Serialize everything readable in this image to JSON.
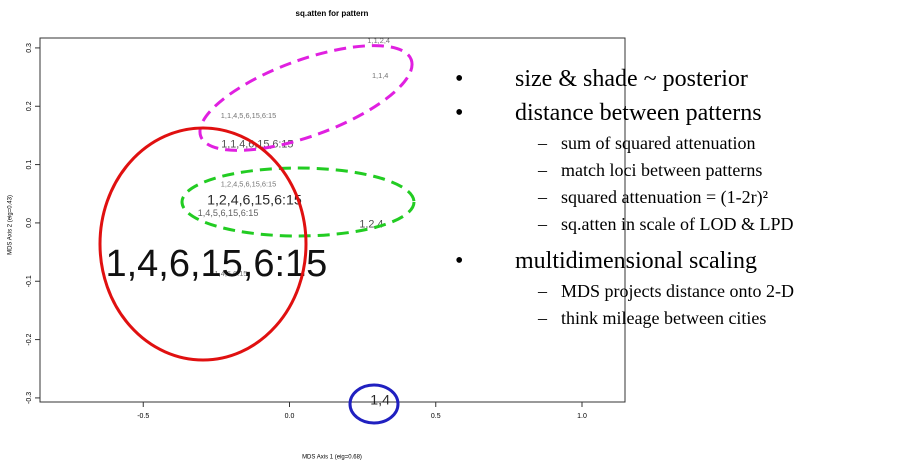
{
  "chart_data": {
    "type": "scatter",
    "title": "sq.atten for pattern",
    "x_label": "MDS Axis 1 (eig=0.68)",
    "y_label": "MDS Axis 2 (eig=0.43)",
    "labels": [
      "1,1,2,4",
      "1,1,4",
      "1,1,4,5,6,15,6:15",
      "1,1,4,6,15,6:15",
      "1,2,4,5,6,15,6:15",
      "1,2,4,6,15,6:15",
      "1,4,5,6,15,6:15",
      "1,2,4",
      "1,4,6,15,6:15",
      "1,4,6,6:15",
      "1,4"
    ],
    "x": [
      0.305,
      0.31,
      -0.14,
      -0.11,
      -0.14,
      -0.12,
      -0.21,
      0.28,
      -0.25,
      -0.2,
      0.31
    ],
    "y": [
      0.312,
      0.252,
      0.183,
      0.134,
      0.066,
      0.038,
      0.016,
      -0.003,
      -0.074,
      -0.088,
      -0.305
    ],
    "sizes": [
      1,
      1,
      1,
      2,
      1,
      3,
      1.5,
      2,
      10,
      1,
      3
    ],
    "xlim": [
      -0.853,
      1.147
    ],
    "ylim": [
      -0.307,
      0.317
    ],
    "xticks": [
      -0.5,
      {
        "value": 0,
        "label": "0.0"
      },
      0.5,
      {
        "value": 1,
        "label": "1.0"
      }
    ],
    "yticks": [
      -0.3,
      -0.2,
      -0.1,
      {
        "value": 0,
        "label": "0.0"
      },
      0.1,
      0.2,
      0.3
    ],
    "color": "#111111"
  },
  "bullets": [
    {
      "text": "size & shade ~ posterior",
      "sub": []
    },
    {
      "text": "distance between patterns",
      "sub": [
        "sum of squared attenuation",
        "match loci between patterns",
        "squared attenuation = (1-2r)²",
        "sq.atten in scale of LOD & LPD"
      ]
    },
    {
      "text": "multidimensional scaling",
      "sub": [
        "MDS projects distance onto 2-D",
        "think mileage between cities"
      ]
    }
  ]
}
